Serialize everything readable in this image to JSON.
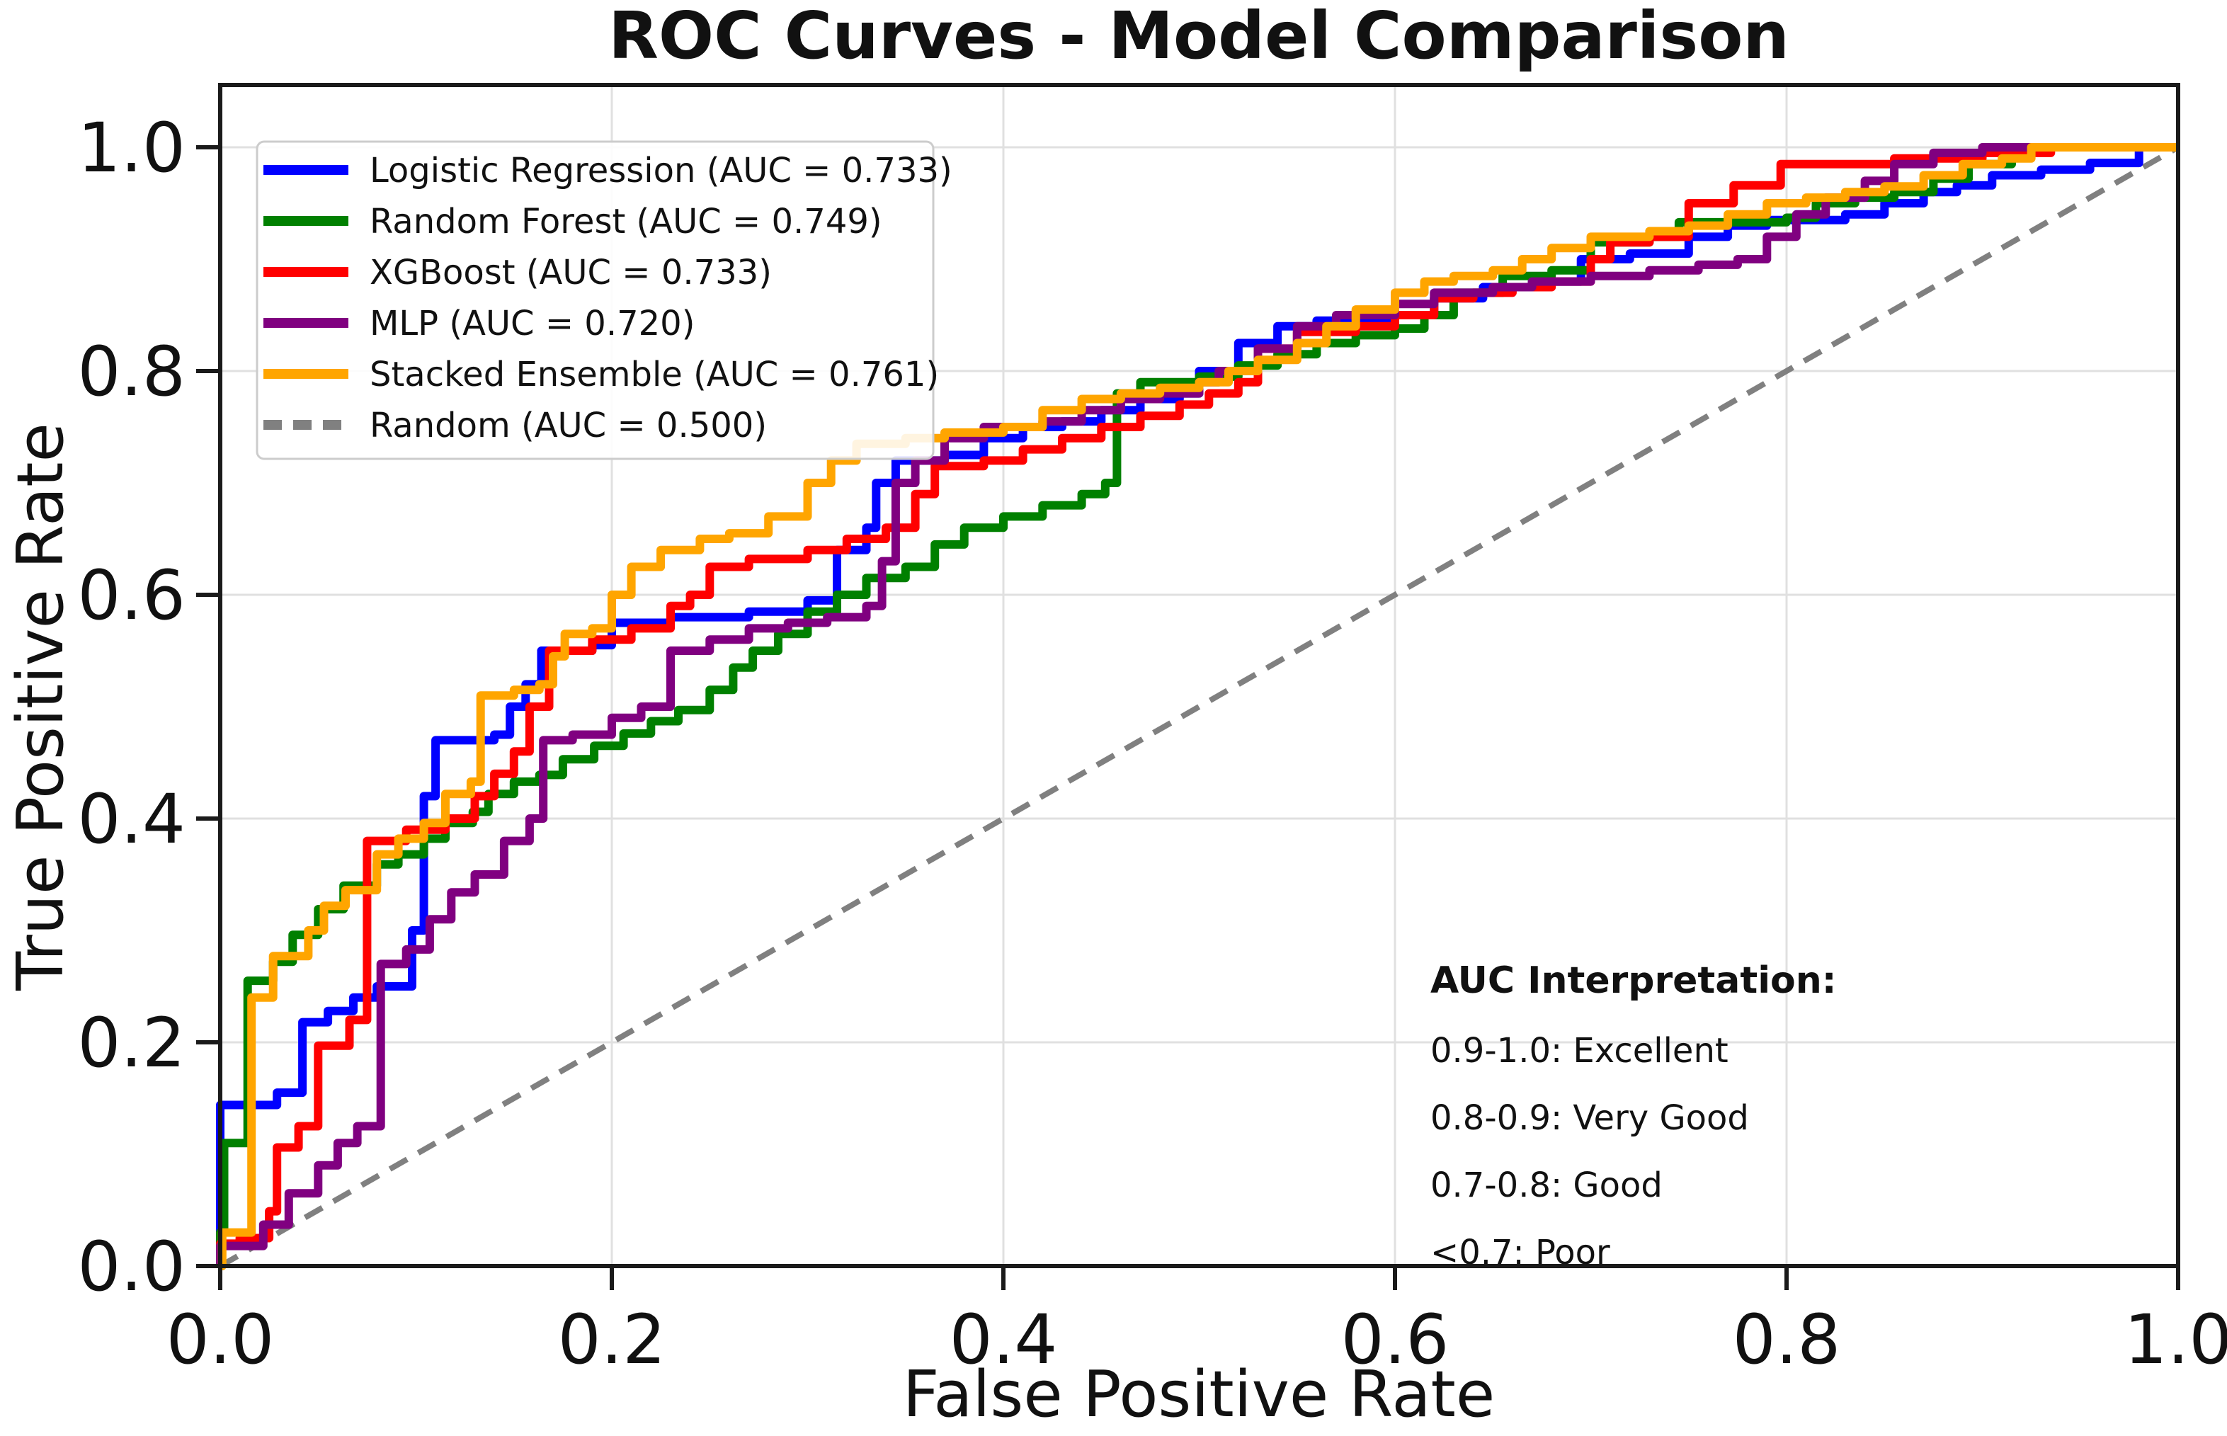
{
  "figure": {
    "title": "ROC Curves - Model Comparison"
  },
  "axes": {
    "xlabel": "False Positive Rate",
    "ylabel": "True Positive Rate",
    "xticks": [
      "0.0",
      "0.2",
      "0.4",
      "0.6",
      "0.8",
      "1.0"
    ],
    "yticks": [
      "0.0",
      "0.2",
      "0.4",
      "0.6",
      "0.8",
      "1.0"
    ]
  },
  "legend": {
    "items": [
      {
        "label": "Logistic Regression (AUC = 0.733)",
        "color": "#0000ff",
        "dashed": false
      },
      {
        "label": "Random Forest (AUC = 0.749)",
        "color": "#008000",
        "dashed": false
      },
      {
        "label": "XGBoost (AUC = 0.733)",
        "color": "#ff0000",
        "dashed": false
      },
      {
        "label": "MLP (AUC = 0.720)",
        "color": "#800080",
        "dashed": false
      },
      {
        "label": "Stacked Ensemble (AUC = 0.761)",
        "color": "#ffa500",
        "dashed": false
      },
      {
        "label": "Random (AUC = 0.500)",
        "color": "#808080",
        "dashed": true
      }
    ]
  },
  "annotation": {
    "title": "AUC Interpretation:",
    "title_color": "#000000",
    "lines": [
      {
        "text": "0.9-1.0: Excellent",
        "color": "#006400"
      },
      {
        "text": "0.8-0.9: Very Good",
        "color": "#008000"
      },
      {
        "text": "0.7-0.8: Good",
        "color": "#ffa500"
      },
      {
        "text": "<0.7: Poor",
        "color": "#ff0000"
      }
    ]
  },
  "chart_data": {
    "type": "line",
    "title": "ROC Curves - Model Comparison",
    "xlabel": "False Positive Rate",
    "ylabel": "True Positive Rate",
    "xlim": [
      0,
      1
    ],
    "ylim": [
      0,
      1.05
    ],
    "grid": true,
    "gridline_interval": 0.2,
    "legend_position": "upper left",
    "series": [
      {
        "name": "Logistic Regression",
        "auc": 0.733,
        "color": "#0000ff",
        "style": "step",
        "points": [
          [
            0,
            0
          ],
          [
            0,
            0.144
          ],
          [
            0.029,
            0.155
          ],
          [
            0.042,
            0.218
          ],
          [
            0.055,
            0.228
          ],
          [
            0.068,
            0.24
          ],
          [
            0.08,
            0.25
          ],
          [
            0.098,
            0.3
          ],
          [
            0.104,
            0.42
          ],
          [
            0.11,
            0.47
          ],
          [
            0.14,
            0.475
          ],
          [
            0.148,
            0.5
          ],
          [
            0.156,
            0.52
          ],
          [
            0.164,
            0.55
          ],
          [
            0.19,
            0.555
          ],
          [
            0.2,
            0.575
          ],
          [
            0.23,
            0.58
          ],
          [
            0.27,
            0.585
          ],
          [
            0.3,
            0.595
          ],
          [
            0.315,
            0.64
          ],
          [
            0.33,
            0.66
          ],
          [
            0.335,
            0.7
          ],
          [
            0.345,
            0.72
          ],
          [
            0.37,
            0.725
          ],
          [
            0.39,
            0.74
          ],
          [
            0.41,
            0.75
          ],
          [
            0.43,
            0.755
          ],
          [
            0.45,
            0.765
          ],
          [
            0.47,
            0.775
          ],
          [
            0.49,
            0.78
          ],
          [
            0.5,
            0.8
          ],
          [
            0.52,
            0.825
          ],
          [
            0.54,
            0.84
          ],
          [
            0.56,
            0.845
          ],
          [
            0.6,
            0.85
          ],
          [
            0.62,
            0.865
          ],
          [
            0.645,
            0.875
          ],
          [
            0.67,
            0.88
          ],
          [
            0.695,
            0.9
          ],
          [
            0.72,
            0.905
          ],
          [
            0.75,
            0.92
          ],
          [
            0.77,
            0.93
          ],
          [
            0.79,
            0.935
          ],
          [
            0.83,
            0.94
          ],
          [
            0.85,
            0.95
          ],
          [
            0.87,
            0.96
          ],
          [
            0.887,
            0.966
          ],
          [
            0.905,
            0.975
          ],
          [
            0.93,
            0.98
          ],
          [
            0.955,
            0.986
          ],
          [
            0.98,
            1
          ],
          [
            1,
            1
          ]
        ]
      },
      {
        "name": "Random Forest",
        "auc": 0.749,
        "color": "#008000",
        "style": "step",
        "points": [
          [
            0,
            0
          ],
          [
            0,
            0.03
          ],
          [
            0.002,
            0.11
          ],
          [
            0.014,
            0.11
          ],
          [
            0.014,
            0.255
          ],
          [
            0.027,
            0.272
          ],
          [
            0.037,
            0.296
          ],
          [
            0.05,
            0.319
          ],
          [
            0.063,
            0.34
          ],
          [
            0.08,
            0.359
          ],
          [
            0.091,
            0.368
          ],
          [
            0.104,
            0.382
          ],
          [
            0.115,
            0.396
          ],
          [
            0.129,
            0.406
          ],
          [
            0.137,
            0.422
          ],
          [
            0.15,
            0.433
          ],
          [
            0.163,
            0.439
          ],
          [
            0.175,
            0.453
          ],
          [
            0.191,
            0.465
          ],
          [
            0.206,
            0.476
          ],
          [
            0.22,
            0.487
          ],
          [
            0.234,
            0.497
          ],
          [
            0.25,
            0.515
          ],
          [
            0.262,
            0.535
          ],
          [
            0.272,
            0.55
          ],
          [
            0.285,
            0.565
          ],
          [
            0.3,
            0.585
          ],
          [
            0.315,
            0.6
          ],
          [
            0.33,
            0.615
          ],
          [
            0.35,
            0.625
          ],
          [
            0.365,
            0.645
          ],
          [
            0.38,
            0.66
          ],
          [
            0.4,
            0.67
          ],
          [
            0.42,
            0.68
          ],
          [
            0.44,
            0.69
          ],
          [
            0.452,
            0.7
          ],
          [
            0.458,
            0.78
          ],
          [
            0.47,
            0.79
          ],
          [
            0.5,
            0.795
          ],
          [
            0.52,
            0.805
          ],
          [
            0.54,
            0.815
          ],
          [
            0.56,
            0.825
          ],
          [
            0.58,
            0.832
          ],
          [
            0.6,
            0.838
          ],
          [
            0.615,
            0.85
          ],
          [
            0.63,
            0.87
          ],
          [
            0.655,
            0.885
          ],
          [
            0.68,
            0.89
          ],
          [
            0.7,
            0.915
          ],
          [
            0.73,
            0.92
          ],
          [
            0.745,
            0.933
          ],
          [
            0.8,
            0.937
          ],
          [
            0.815,
            0.95
          ],
          [
            0.835,
            0.955
          ],
          [
            0.855,
            0.96
          ],
          [
            0.875,
            0.972
          ],
          [
            0.893,
            0.985
          ],
          [
            0.915,
            1
          ],
          [
            1,
            1
          ]
        ]
      },
      {
        "name": "XGBoost",
        "auc": 0.733,
        "color": "#ff0000",
        "style": "step",
        "points": [
          [
            0,
            0
          ],
          [
            0,
            0.02
          ],
          [
            0.01,
            0.025
          ],
          [
            0.025,
            0.049
          ],
          [
            0.029,
            0.106
          ],
          [
            0.04,
            0.125
          ],
          [
            0.05,
            0.197
          ],
          [
            0.066,
            0.22
          ],
          [
            0.075,
            0.38
          ],
          [
            0.095,
            0.39
          ],
          [
            0.115,
            0.4
          ],
          [
            0.13,
            0.42
          ],
          [
            0.14,
            0.44
          ],
          [
            0.15,
            0.46
          ],
          [
            0.158,
            0.5
          ],
          [
            0.168,
            0.55
          ],
          [
            0.19,
            0.56
          ],
          [
            0.21,
            0.57
          ],
          [
            0.23,
            0.59
          ],
          [
            0.24,
            0.6
          ],
          [
            0.25,
            0.625
          ],
          [
            0.27,
            0.632
          ],
          [
            0.3,
            0.64
          ],
          [
            0.32,
            0.65
          ],
          [
            0.34,
            0.66
          ],
          [
            0.355,
            0.69
          ],
          [
            0.365,
            0.715
          ],
          [
            0.39,
            0.72
          ],
          [
            0.41,
            0.73
          ],
          [
            0.43,
            0.74
          ],
          [
            0.45,
            0.75
          ],
          [
            0.47,
            0.76
          ],
          [
            0.49,
            0.77
          ],
          [
            0.505,
            0.78
          ],
          [
            0.52,
            0.79
          ],
          [
            0.53,
            0.82
          ],
          [
            0.55,
            0.835
          ],
          [
            0.58,
            0.84
          ],
          [
            0.6,
            0.85
          ],
          [
            0.62,
            0.865
          ],
          [
            0.64,
            0.87
          ],
          [
            0.66,
            0.875
          ],
          [
            0.68,
            0.88
          ],
          [
            0.7,
            0.9
          ],
          [
            0.71,
            0.915
          ],
          [
            0.73,
            0.92
          ],
          [
            0.75,
            0.95
          ],
          [
            0.773,
            0.966
          ],
          [
            0.797,
            0.985
          ],
          [
            0.855,
            0.99
          ],
          [
            0.9,
            0.995
          ],
          [
            0.935,
            1
          ],
          [
            1,
            1
          ]
        ]
      },
      {
        "name": "MLP",
        "auc": 0.72,
        "color": "#800080",
        "style": "step",
        "points": [
          [
            0,
            0
          ],
          [
            0,
            0.018
          ],
          [
            0.022,
            0.037
          ],
          [
            0.035,
            0.065
          ],
          [
            0.05,
            0.09
          ],
          [
            0.06,
            0.11
          ],
          [
            0.07,
            0.125
          ],
          [
            0.082,
            0.27
          ],
          [
            0.095,
            0.283
          ],
          [
            0.107,
            0.31
          ],
          [
            0.118,
            0.334
          ],
          [
            0.13,
            0.35
          ],
          [
            0.145,
            0.38
          ],
          [
            0.158,
            0.4
          ],
          [
            0.165,
            0.47
          ],
          [
            0.18,
            0.475
          ],
          [
            0.2,
            0.49
          ],
          [
            0.215,
            0.5
          ],
          [
            0.23,
            0.55
          ],
          [
            0.25,
            0.56
          ],
          [
            0.27,
            0.57
          ],
          [
            0.29,
            0.575
          ],
          [
            0.31,
            0.58
          ],
          [
            0.33,
            0.59
          ],
          [
            0.338,
            0.63
          ],
          [
            0.345,
            0.7
          ],
          [
            0.355,
            0.72
          ],
          [
            0.37,
            0.74
          ],
          [
            0.39,
            0.75
          ],
          [
            0.42,
            0.755
          ],
          [
            0.44,
            0.765
          ],
          [
            0.46,
            0.775
          ],
          [
            0.48,
            0.78
          ],
          [
            0.5,
            0.79
          ],
          [
            0.51,
            0.8
          ],
          [
            0.53,
            0.82
          ],
          [
            0.55,
            0.84
          ],
          [
            0.57,
            0.85
          ],
          [
            0.6,
            0.86
          ],
          [
            0.62,
            0.87
          ],
          [
            0.65,
            0.875
          ],
          [
            0.67,
            0.88
          ],
          [
            0.7,
            0.885
          ],
          [
            0.73,
            0.89
          ],
          [
            0.755,
            0.895
          ],
          [
            0.775,
            0.9
          ],
          [
            0.79,
            0.92
          ],
          [
            0.805,
            0.94
          ],
          [
            0.82,
            0.955
          ],
          [
            0.84,
            0.97
          ],
          [
            0.855,
            0.985
          ],
          [
            0.875,
            0.995
          ],
          [
            0.9,
            1
          ],
          [
            1,
            1
          ]
        ]
      },
      {
        "name": "Stacked Ensemble",
        "auc": 0.761,
        "color": "#ffa500",
        "style": "step",
        "points": [
          [
            0,
            0
          ],
          [
            0.001,
            0.03
          ],
          [
            0.016,
            0.03
          ],
          [
            0.016,
            0.24
          ],
          [
            0.027,
            0.277
          ],
          [
            0.045,
            0.3
          ],
          [
            0.053,
            0.322
          ],
          [
            0.064,
            0.336
          ],
          [
            0.08,
            0.368
          ],
          [
            0.091,
            0.382
          ],
          [
            0.104,
            0.396
          ],
          [
            0.115,
            0.422
          ],
          [
            0.128,
            0.433
          ],
          [
            0.133,
            0.51
          ],
          [
            0.15,
            0.515
          ],
          [
            0.163,
            0.52
          ],
          [
            0.17,
            0.545
          ],
          [
            0.176,
            0.565
          ],
          [
            0.19,
            0.57
          ],
          [
            0.2,
            0.6
          ],
          [
            0.21,
            0.625
          ],
          [
            0.225,
            0.64
          ],
          [
            0.245,
            0.65
          ],
          [
            0.26,
            0.655
          ],
          [
            0.28,
            0.67
          ],
          [
            0.3,
            0.7
          ],
          [
            0.312,
            0.72
          ],
          [
            0.325,
            0.735
          ],
          [
            0.35,
            0.74
          ],
          [
            0.37,
            0.745
          ],
          [
            0.4,
            0.75
          ],
          [
            0.42,
            0.765
          ],
          [
            0.44,
            0.775
          ],
          [
            0.46,
            0.78
          ],
          [
            0.48,
            0.785
          ],
          [
            0.5,
            0.79
          ],
          [
            0.515,
            0.8
          ],
          [
            0.53,
            0.81
          ],
          [
            0.55,
            0.825
          ],
          [
            0.565,
            0.84
          ],
          [
            0.58,
            0.855
          ],
          [
            0.6,
            0.87
          ],
          [
            0.615,
            0.88
          ],
          [
            0.63,
            0.885
          ],
          [
            0.65,
            0.89
          ],
          [
            0.665,
            0.9
          ],
          [
            0.68,
            0.91
          ],
          [
            0.7,
            0.92
          ],
          [
            0.73,
            0.925
          ],
          [
            0.75,
            0.93
          ],
          [
            0.77,
            0.94
          ],
          [
            0.79,
            0.95
          ],
          [
            0.81,
            0.955
          ],
          [
            0.83,
            0.96
          ],
          [
            0.85,
            0.965
          ],
          [
            0.87,
            0.975
          ],
          [
            0.89,
            0.985
          ],
          [
            0.91,
            0.99
          ],
          [
            0.925,
            1
          ],
          [
            1,
            1
          ]
        ]
      },
      {
        "name": "Random",
        "auc": 0.5,
        "color": "#808080",
        "style": "dashed",
        "points": [
          [
            0,
            0
          ],
          [
            1,
            1
          ]
        ]
      }
    ]
  }
}
